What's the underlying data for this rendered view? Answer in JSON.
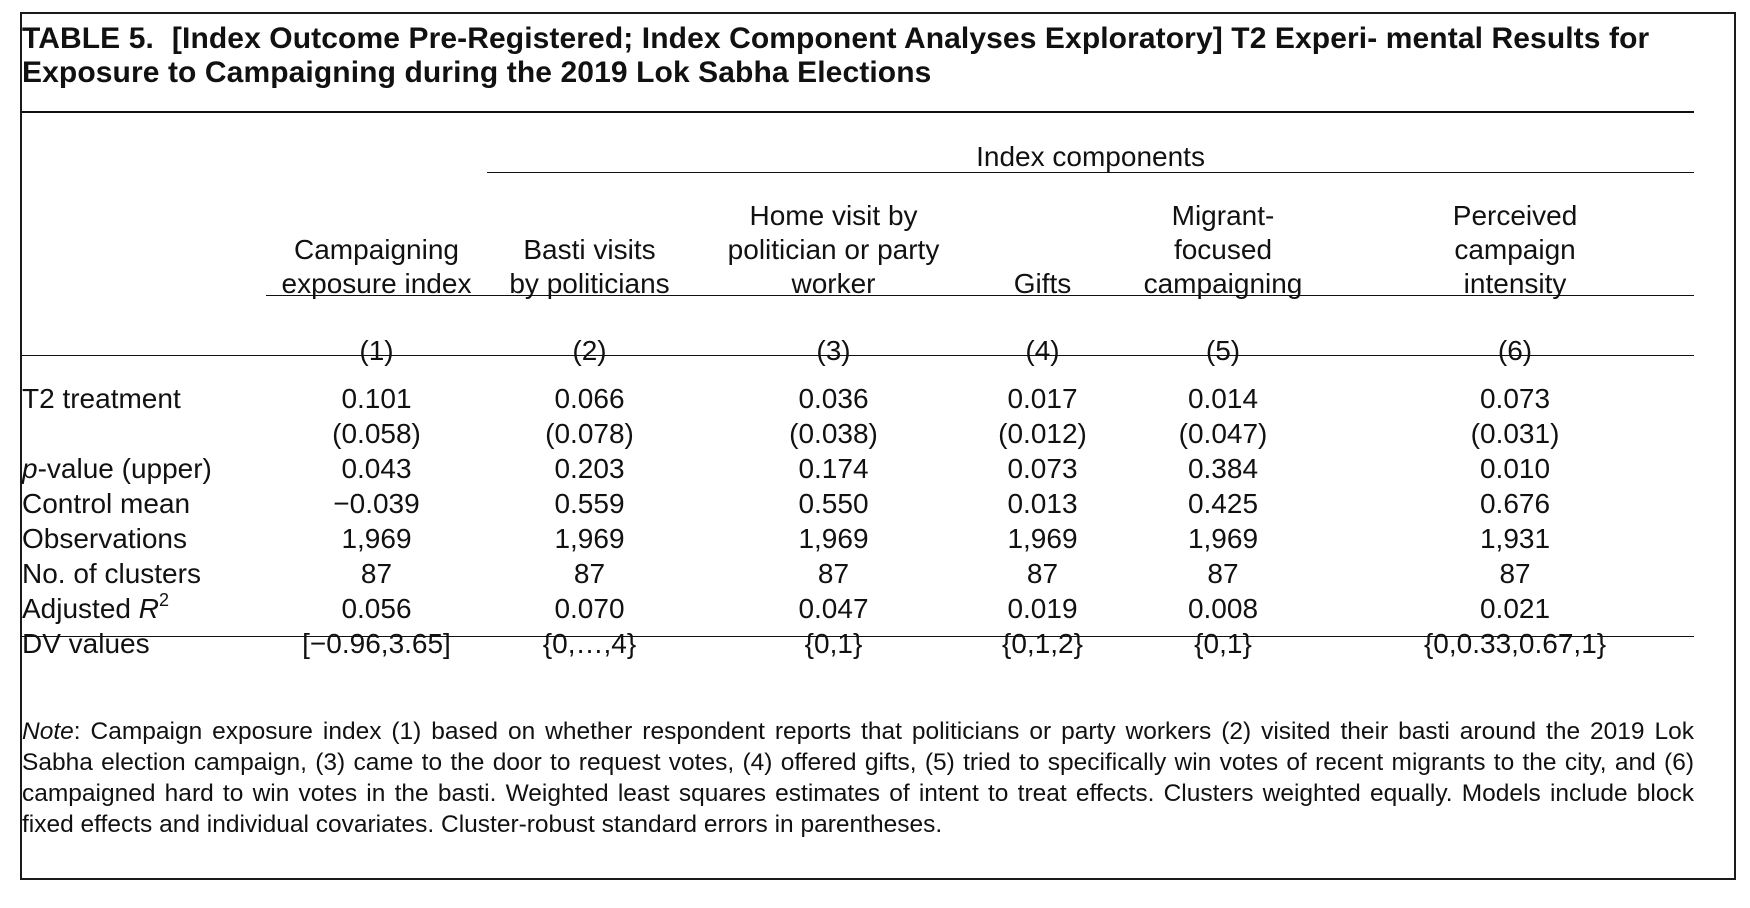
{
  "caption": {
    "label": "TABLE 5.",
    "text": "[Index Outcome Pre-Registered; Index Component Analyses Exploratory] T2 Experi- mental Results for Exposure to Campaigning during the 2019 Lok Sabha Elections"
  },
  "spanner": "Index components",
  "columns": [
    {
      "header": "Campaigning\nexposure index",
      "number": "(1)"
    },
    {
      "header": "Basti visits\nby politicians",
      "number": "(2)"
    },
    {
      "header": "Home visit by\npolitician or party\nworker",
      "number": "(3)"
    },
    {
      "header": "Gifts",
      "number": "(4)"
    },
    {
      "header": "Migrant-\nfocused\ncampaigning",
      "number": "(5)"
    },
    {
      "header": "Perceived\ncampaign\nintensity",
      "number": "(6)"
    }
  ],
  "rows": [
    {
      "label": "T2 treatment",
      "values": [
        "0.101",
        "0.066",
        "0.036",
        "0.017",
        "0.014",
        "0.073"
      ]
    },
    {
      "label": "",
      "values": [
        "(0.058)",
        "(0.078)",
        "(0.038)",
        "(0.012)",
        "(0.047)",
        "(0.031)"
      ]
    },
    {
      "label_italic": "p",
      "label_rest": "-value (upper)",
      "values": [
        "0.043",
        "0.203",
        "0.174",
        "0.073",
        "0.384",
        "0.010"
      ]
    },
    {
      "label": "Control mean",
      "values": [
        "−0.039",
        "0.559",
        "0.550",
        "0.013",
        "0.425",
        "0.676"
      ]
    },
    {
      "label": "Observations",
      "values": [
        "1,969",
        "1,969",
        "1,969",
        "1,969",
        "1,969",
        "1,931"
      ]
    },
    {
      "label": "No. of clusters",
      "values": [
        "87",
        "87",
        "87",
        "87",
        "87",
        "87"
      ]
    },
    {
      "label_plain": "Adjusted ",
      "label_italic": "R",
      "label_sup": "2",
      "values": [
        "0.056",
        "0.070",
        "0.047",
        "0.019",
        "0.008",
        "0.021"
      ]
    },
    {
      "label": "DV values",
      "values": [
        "[−0.96,3.65]",
        "{0,…,4}",
        "{0,1}",
        "{0,1,2}",
        "{0,1}",
        "{0,0.33,0.67,1}"
      ]
    }
  ],
  "note": {
    "head": "Note",
    "text": ": Campaign exposure index (1) based on whether respondent reports that politicians or party workers (2) visited their basti around the 2019 Lok Sabha election campaign, (3) came to the door to request votes, (4) offered gifts, (5) tried to specifically win votes of recent migrants to the city, and (6) campaigned hard to win votes in the basti. Weighted least squares estimates of intent to treat effects. Clusters weighted equally. Models include block fixed effects and individual covariates. Cluster-robust standard errors in parentheses."
  }
}
